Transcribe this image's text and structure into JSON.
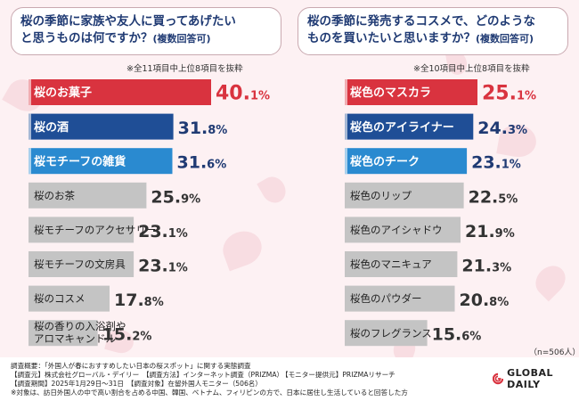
{
  "chart_data": [
    {
      "type": "bar",
      "title": "桜の季節に家族や友人に買ってあげたいと思うものは何ですか？",
      "title_note": "(複数回答可)",
      "subnote": "※全11項目中上位8項目を抜粋",
      "unit": "%",
      "xlim": [
        0,
        40.1
      ],
      "categories": [
        "桜のお菓子",
        "桜の酒",
        "桜モチーフの雑貨",
        "桜のお茶",
        "桜モチーフのアクセサリー",
        "桜モチーフの文房具",
        "桜のコスメ",
        "桜の香りの入浴剤やアロマキャンドル"
      ],
      "values": [
        40.1,
        31.8,
        31.6,
        25.9,
        23.1,
        23.1,
        17.8,
        15.2
      ]
    },
    {
      "type": "bar",
      "title": "桜の季節に発売するコスメで、どのようなものを買いたいと思いますか？",
      "title_note": "(複数回答可)",
      "subnote": "※全10項目中上位8項目を抜粋",
      "unit": "%",
      "xlim": [
        0,
        25.1
      ],
      "categories": [
        "桜色のマスカラ",
        "桜色のアイライナー",
        "桜色のチーク",
        "桜色のリップ",
        "桜色のアイシャドウ",
        "桜色のマニキュア",
        "桜色のパウダー",
        "桜のフレグランス"
      ],
      "values": [
        25.1,
        24.3,
        23.1,
        22.5,
        21.9,
        21.3,
        20.8,
        15.6
      ]
    }
  ],
  "colors": {
    "rank1": "#d9333f",
    "rank2": "#1f4e96",
    "rank3": "#2a8ad0",
    "other": "#c4c4c4",
    "rank1_text": "#d9333f",
    "other_text": "#333333"
  },
  "left": {
    "title_line1": "桜の季節に家族や友人に買ってあげたい",
    "title_line2": "と思うものは何ですか？",
    "title_note": "(複数回答可)",
    "subnote": "※全11項目中上位8項目を抜粋"
  },
  "right": {
    "title_line1": "桜の季節に発売するコスメで、どのような",
    "title_line2": "ものを買いたいと思いますか？",
    "title_note": "(複数回答可)",
    "subnote": "※全10項目中上位8項目を抜粋"
  },
  "n_note": "（n=506人）",
  "footer": {
    "line1": "調査概要：「外国人が春におすすめしたい日本の桜スポット」に関する実態調査",
    "line2a": "【調査元】株式会社グローバル・デイリー　【調査方法】インターネット調査（PRIZMA）",
    "line2b": "【モニター提供元】PRIZMAリサーチ",
    "line3": "【調査期間】2025年1月29日～31日　【調査対象】在留外国人モニター（506名）",
    "line4": "※対象は、訪日外国人の中で高い割合を占める中国、韓国、ベトナム、フィリピンの方で、日本に居住し生活していると回答した方"
  },
  "logo": {
    "text": "GLOBAL DAILY",
    "icon": "global-daily-logo-icon"
  }
}
